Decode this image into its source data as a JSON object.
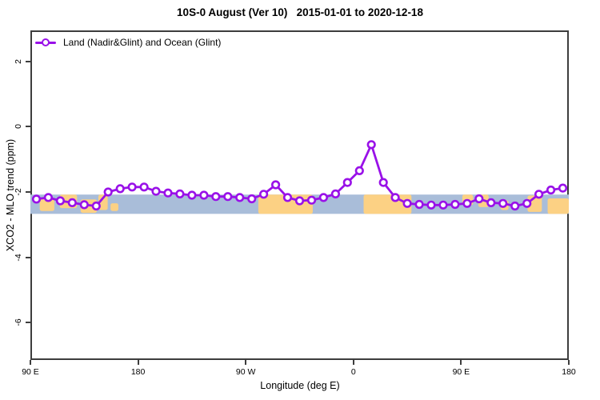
{
  "title": "10S-0 August (Ver 10)   2015-01-01 to 2020-12-18",
  "legend": {
    "label": "Land (Nadir&Glint) and Ocean (Glint)",
    "marker": "open-circle-on-line"
  },
  "colors": {
    "series_line": "#9911e8",
    "marker_fill": "#ffffff",
    "ocean_band": "#a9bdd9",
    "land_patch": "#fcd184",
    "axis": "#3d3d3d",
    "text": "#000000"
  },
  "chart_data": {
    "type": "line",
    "title": "10S-0 August (Ver 10)   2015-01-01 to 2020-12-18",
    "xlabel": "Longitude (deg E)",
    "ylabel": "XCO2 - MLO trend (ppm)",
    "legend_position": "top-left",
    "grid": false,
    "marker": "open-circle",
    "xlim": [
      90,
      540
    ],
    "ylim": [
      -7.15,
      2.95
    ],
    "x_tick_positions": [
      90,
      180,
      270,
      360,
      450,
      540
    ],
    "x_tick_labels": [
      "90 E",
      "180",
      "90 W",
      "0",
      "90 E",
      "180"
    ],
    "y_ticks": [
      2,
      0,
      -2,
      -4,
      -6
    ],
    "x_units_note": "longitude in continuous deg E from 90 to 540 (wraps past dateline)",
    "x": [
      95,
      105,
      115,
      125,
      135,
      145,
      155,
      165,
      175,
      185,
      195,
      205,
      215,
      225,
      235,
      245,
      255,
      265,
      275,
      285,
      295,
      305,
      315,
      325,
      335,
      345,
      355,
      365,
      375,
      385,
      395,
      405,
      415,
      425,
      435,
      445,
      455,
      465,
      475,
      485,
      495,
      505,
      515,
      525,
      535
    ],
    "series": [
      {
        "name": "Land (Nadir&Glint) and Ocean (Glint)",
        "values": [
          -2.22,
          -2.17,
          -2.27,
          -2.33,
          -2.39,
          -2.43,
          -2.0,
          -1.9,
          -1.85,
          -1.85,
          -1.98,
          -2.03,
          -2.06,
          -2.1,
          -2.1,
          -2.14,
          -2.14,
          -2.17,
          -2.21,
          -2.07,
          -1.78,
          -2.17,
          -2.27,
          -2.25,
          -2.17,
          -2.06,
          -1.71,
          -1.35,
          -0.55,
          -1.71,
          -2.17,
          -2.35,
          -2.38,
          -2.4,
          -2.4,
          -2.38,
          -2.35,
          -2.21,
          -2.33,
          -2.35,
          -2.43,
          -2.35,
          -2.07,
          -1.94,
          -1.88
        ]
      }
    ],
    "background_band": {
      "description": "map strip of the 10S-0 latitude band drawn across the plot",
      "value_top_ppm": -2.08,
      "value_bottom_ppm": -2.67,
      "land_patches": [
        {
          "name": "sumatra-java",
          "lon0": 97.8,
          "lon1": 110.0,
          "top": 0.15,
          "bottom": 0.85
        },
        {
          "name": "borneo-sulawesi",
          "lon0": 114.5,
          "lon1": 129.0,
          "top": 0.0,
          "bottom": 0.7
        },
        {
          "name": "maluku-islands",
          "lon0": 132.0,
          "lon1": 145.5,
          "top": 0.25,
          "bottom": 0.95
        },
        {
          "name": "new-guinea",
          "lon0": 146.8,
          "lon1": 154.6,
          "top": 0.0,
          "bottom": 0.8
        },
        {
          "name": "solomon-islands",
          "lon0": 157.0,
          "lon1": 163.5,
          "top": 0.45,
          "bottom": 0.85
        },
        {
          "name": "south-america",
          "lon0": 280.5,
          "lon1": 326.0,
          "top": 0.0,
          "bottom": 1.0
        },
        {
          "name": "africa",
          "lon0": 368.5,
          "lon1": 408.5,
          "top": 0.0,
          "bottom": 1.0
        },
        {
          "name": "sumatra-repeat",
          "lon0": 451.0,
          "lon1": 460.0,
          "top": 0.0,
          "bottom": 0.55
        },
        {
          "name": "borneo-repeat",
          "lon0": 464.4,
          "lon1": 473.0,
          "top": 0.0,
          "bottom": 0.65
        },
        {
          "name": "sulawesi-repeat",
          "lon0": 483.0,
          "lon1": 489.6,
          "top": 0.3,
          "bottom": 0.8
        },
        {
          "name": "new-guinea-repeat",
          "lon0": 505.5,
          "lon1": 517.5,
          "top": 0.05,
          "bottom": 0.9
        },
        {
          "name": "melanesia-repeat",
          "lon0": 522.3,
          "lon1": 540.0,
          "top": 0.2,
          "bottom": 1.0
        }
      ]
    }
  }
}
